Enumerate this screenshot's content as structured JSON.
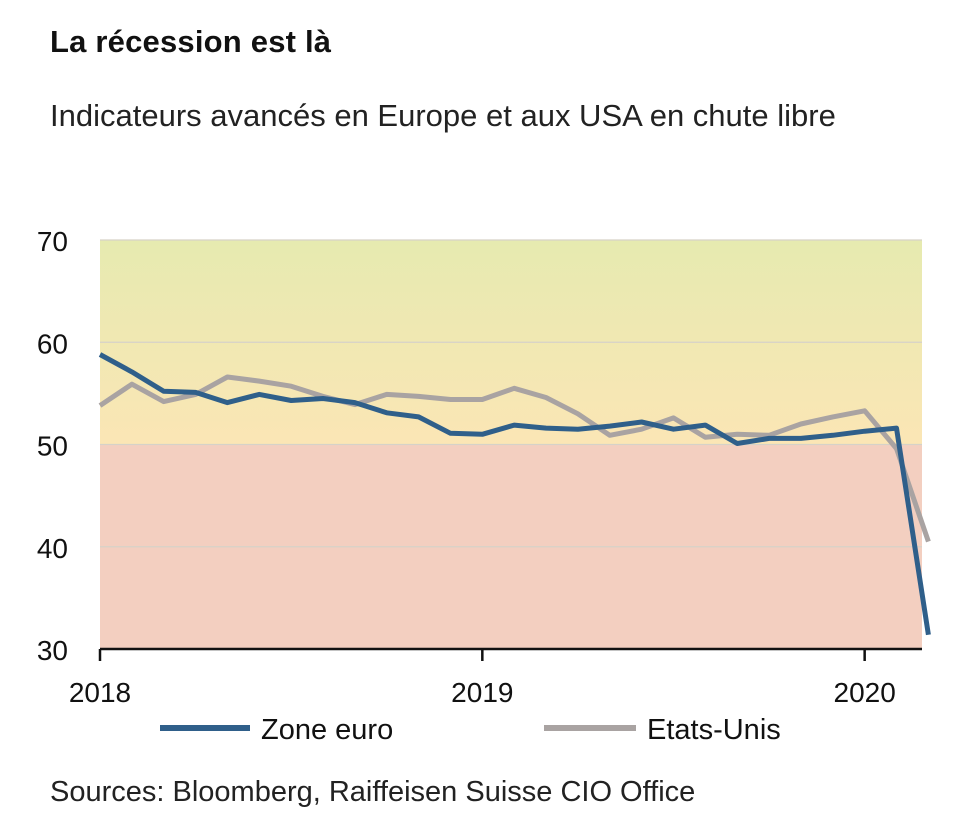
{
  "title": "La récession est là",
  "subtitle": "Indicateurs avancés en Europe et aux USA en chute libre",
  "source": "Sources: Bloomberg, Raiffeisen Suisse CIO Office",
  "colors": {
    "zone_euro": "#2f5f8a",
    "etats_unis": "#a9a3a2",
    "band_top": "#e9ebb0",
    "band_mid": "#fbe6b4",
    "band_bottom": "#f3cfc0",
    "grid": "#d6d2c8"
  },
  "chart_data": {
    "type": "line",
    "title": "La récession est là",
    "subtitle": "Indicateurs avancés en Europe et aux USA en chute libre",
    "xlabel": "",
    "ylabel": "",
    "xlim": [
      2018.0,
      2020.15
    ],
    "ylim": [
      30,
      70
    ],
    "yticks": [
      30,
      40,
      50,
      60,
      70
    ],
    "xticks": [
      2018,
      2019,
      2020
    ],
    "xtick_labels": [
      "2018",
      "2019",
      "2020"
    ],
    "grid": true,
    "legend": "bottom",
    "background_bands": [
      {
        "from": 50,
        "to": 70,
        "style": "gradient yellow-green to yellow"
      },
      {
        "from": 30,
        "to": 50,
        "style": "light red"
      }
    ],
    "x": [
      "2018-01",
      "2018-02",
      "2018-03",
      "2018-04",
      "2018-05",
      "2018-06",
      "2018-07",
      "2018-08",
      "2018-09",
      "2018-10",
      "2018-11",
      "2018-12",
      "2019-01",
      "2019-02",
      "2019-03",
      "2019-04",
      "2019-05",
      "2019-06",
      "2019-07",
      "2019-08",
      "2019-09",
      "2019-10",
      "2019-11",
      "2019-12",
      "2020-01",
      "2020-02",
      "2020-03"
    ],
    "series": [
      {
        "name": "Zone euro",
        "color": "#2f5f8a",
        "values": [
          58.8,
          57.1,
          55.2,
          55.1,
          54.1,
          54.9,
          54.3,
          54.5,
          54.1,
          53.1,
          52.7,
          51.1,
          51.0,
          51.9,
          51.6,
          51.5,
          51.8,
          52.2,
          51.5,
          51.9,
          50.1,
          50.6,
          50.6,
          50.9,
          51.3,
          51.6,
          31.4
        ]
      },
      {
        "name": "Etats-Unis",
        "color": "#a9a3a2",
        "values": [
          53.8,
          55.9,
          54.2,
          54.9,
          56.6,
          56.2,
          55.7,
          54.7,
          53.9,
          54.9,
          54.7,
          54.4,
          54.4,
          55.5,
          54.6,
          53.0,
          50.9,
          51.5,
          52.6,
          50.7,
          51.0,
          50.9,
          52.0,
          52.7,
          53.3,
          49.6,
          40.5
        ]
      }
    ]
  }
}
